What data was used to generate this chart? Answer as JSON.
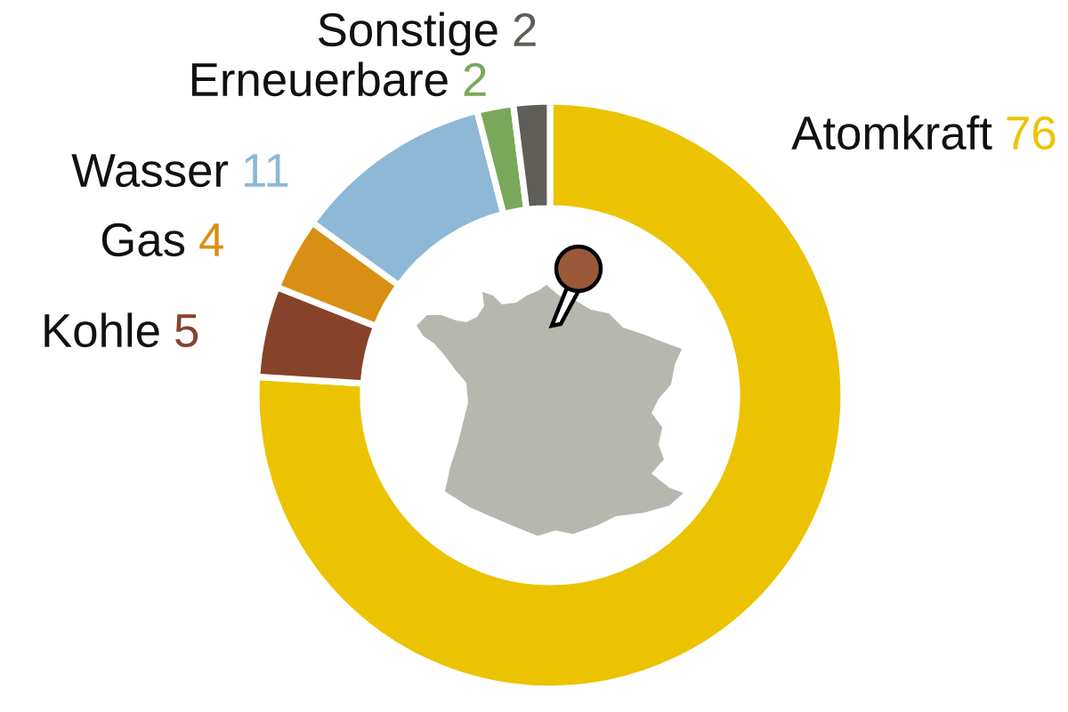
{
  "chart_data": {
    "type": "donut",
    "categories": [
      "Atomkraft",
      "Kohle",
      "Gas",
      "Wasser",
      "Erneuerbare",
      "Sonstige"
    ],
    "values": [
      76,
      5,
      4,
      11,
      2,
      2
    ],
    "colors": [
      "#ebc300",
      "#87432a",
      "#d88f14",
      "#8db8d6",
      "#7aa85a",
      "#5f5e58"
    ],
    "data_labels": true
  }
}
